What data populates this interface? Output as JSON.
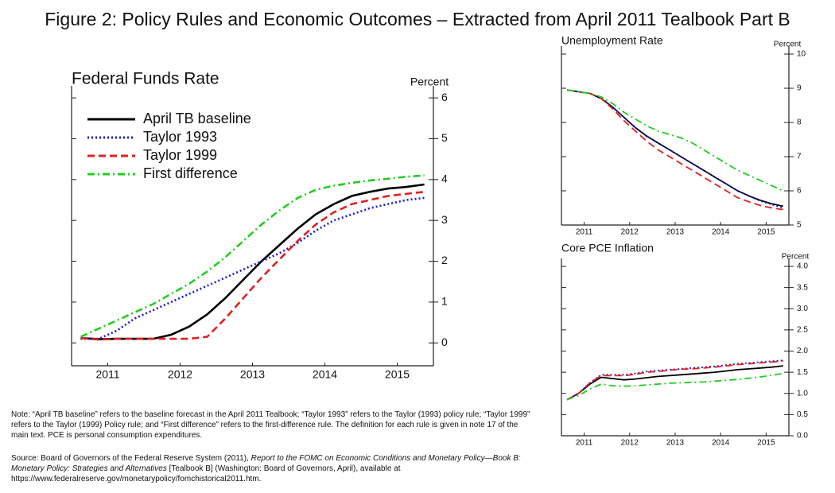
{
  "title": "Figure 2: Policy Rules and Economic Outcomes – Extracted from April 2011 Tealbook Part B",
  "chart_data": [
    {
      "type": "line",
      "title": "Federal Funds Rate",
      "y_label": "Percent",
      "x": [
        2011.125,
        2011.375,
        2011.625,
        2011.875,
        2012.125,
        2012.375,
        2012.625,
        2012.875,
        2013.125,
        2013.375,
        2013.625,
        2013.875,
        2014.125,
        2014.375,
        2014.625,
        2014.875,
        2015.125,
        2015.375,
        2015.625,
        2015.875
      ],
      "xlim": [
        2011,
        2016
      ],
      "xticks": [
        {
          "value": 2011.5,
          "label": "2011"
        },
        {
          "value": 2012.5,
          "label": "2012"
        },
        {
          "value": 2013.5,
          "label": "2013"
        },
        {
          "value": 2014.5,
          "label": "2014"
        },
        {
          "value": 2015.5,
          "label": "2015"
        }
      ],
      "ylim": [
        -0.56,
        6.1
      ],
      "yticks": [
        0,
        1,
        2,
        3,
        4,
        5,
        6
      ],
      "legend": "upper left",
      "series": [
        {
          "name": "April TB baseline",
          "color": "#000000",
          "line_style": "solid",
          "values": [
            0.12,
            0.09,
            0.1,
            0.1,
            0.1,
            0.2,
            0.4,
            0.7,
            1.1,
            1.55,
            2.0,
            2.4,
            2.8,
            3.15,
            3.4,
            3.6,
            3.7,
            3.78,
            3.82,
            3.88
          ]
        },
        {
          "name": "Taylor 1993",
          "color": "#1a1ad8",
          "line_style": "dotted",
          "values": [
            0.1,
            0.1,
            0.3,
            0.6,
            0.8,
            1.0,
            1.2,
            1.4,
            1.6,
            1.8,
            2.0,
            2.2,
            2.45,
            2.75,
            3.0,
            3.15,
            3.3,
            3.4,
            3.5,
            3.55
          ]
        },
        {
          "name": "Taylor 1999",
          "color": "#e02020",
          "line_style": "dashed",
          "values": [
            0.12,
            0.08,
            0.1,
            0.1,
            0.1,
            0.1,
            0.1,
            0.15,
            0.6,
            1.1,
            1.6,
            2.05,
            2.5,
            2.9,
            3.2,
            3.4,
            3.5,
            3.6,
            3.65,
            3.7
          ]
        },
        {
          "name": "First difference",
          "color": "#22cc22",
          "line_style": "dashdot",
          "values": [
            0.15,
            0.35,
            0.55,
            0.75,
            0.95,
            1.2,
            1.45,
            1.75,
            2.1,
            2.5,
            2.9,
            3.25,
            3.55,
            3.75,
            3.85,
            3.92,
            3.98,
            4.02,
            4.07,
            4.1
          ]
        }
      ]
    },
    {
      "type": "line",
      "title": "Unemployment Rate",
      "y_label": "Percent",
      "x": [
        2011.125,
        2011.375,
        2011.625,
        2011.875,
        2012.125,
        2012.375,
        2012.625,
        2012.875,
        2013.125,
        2013.375,
        2013.625,
        2013.875,
        2014.125,
        2014.375,
        2014.625,
        2014.875,
        2015.125,
        2015.375,
        2015.625,
        2015.875
      ],
      "xlim": [
        2011,
        2016
      ],
      "xticks": [
        {
          "value": 2011.5,
          "label": "2011"
        },
        {
          "value": 2012.5,
          "label": "2012"
        },
        {
          "value": 2013.5,
          "label": "2013"
        },
        {
          "value": 2014.5,
          "label": "2014"
        },
        {
          "value": 2015.5,
          "label": "2015"
        }
      ],
      "ylim": [
        5,
        10
      ],
      "yticks": [
        5,
        6,
        7,
        8,
        9,
        10
      ],
      "series": [
        {
          "color": "#000000",
          "line_style": "solid",
          "values": [
            8.95,
            8.9,
            8.85,
            8.7,
            8.45,
            8.15,
            7.85,
            7.6,
            7.4,
            7.2,
            7.0,
            6.8,
            6.6,
            6.4,
            6.2,
            6.0,
            5.85,
            5.72,
            5.62,
            5.55
          ]
        },
        {
          "color": "#1a1ad8",
          "line_style": "dotted",
          "values": [
            8.95,
            8.9,
            8.85,
            8.72,
            8.45,
            8.15,
            7.85,
            7.6,
            7.4,
            7.2,
            7.0,
            6.8,
            6.6,
            6.4,
            6.2,
            6.0,
            5.85,
            5.7,
            5.6,
            5.5
          ]
        },
        {
          "color": "#e02020",
          "line_style": "dashed",
          "values": [
            8.95,
            8.9,
            8.85,
            8.7,
            8.4,
            8.05,
            7.75,
            7.45,
            7.2,
            7.0,
            6.8,
            6.6,
            6.4,
            6.2,
            6.0,
            5.8,
            5.68,
            5.57,
            5.5,
            5.45
          ]
        },
        {
          "color": "#22cc22",
          "line_style": "dashdot",
          "values": [
            8.95,
            8.9,
            8.85,
            8.75,
            8.55,
            8.3,
            8.1,
            7.9,
            7.75,
            7.65,
            7.55,
            7.4,
            7.2,
            7.0,
            6.8,
            6.6,
            6.45,
            6.3,
            6.15,
            6.0
          ]
        }
      ]
    },
    {
      "type": "line",
      "title": "Core PCE Inflation",
      "y_label": "Percent",
      "x": [
        2011.125,
        2011.375,
        2011.625,
        2011.875,
        2012.125,
        2012.375,
        2012.625,
        2012.875,
        2013.125,
        2013.375,
        2013.625,
        2013.875,
        2014.125,
        2014.375,
        2014.625,
        2014.875,
        2015.125,
        2015.375,
        2015.625,
        2015.875
      ],
      "xlim": [
        2011,
        2016
      ],
      "xticks": [
        {
          "value": 2011.5,
          "label": "2011"
        },
        {
          "value": 2012.5,
          "label": "2012"
        },
        {
          "value": 2013.5,
          "label": "2013"
        },
        {
          "value": 2014.5,
          "label": "2014"
        },
        {
          "value": 2015.5,
          "label": "2015"
        }
      ],
      "ylim": [
        0,
        4
      ],
      "yticks": [
        {
          "value": 0,
          "label": "0.0"
        },
        {
          "value": 0.5,
          "label": "0.5"
        },
        {
          "value": 1,
          "label": "1.0"
        },
        {
          "value": 1.5,
          "label": "1.5"
        },
        {
          "value": 2,
          "label": "2.0"
        },
        {
          "value": 2.5,
          "label": "2.5"
        },
        {
          "value": 3,
          "label": "3.0"
        },
        {
          "value": 3.5,
          "label": "3.5"
        },
        {
          "value": 4,
          "label": "4.0"
        }
      ],
      "series": [
        {
          "color": "#000000",
          "line_style": "solid",
          "values": [
            0.85,
            1.0,
            1.22,
            1.38,
            1.35,
            1.32,
            1.34,
            1.37,
            1.4,
            1.42,
            1.44,
            1.46,
            1.48,
            1.5,
            1.53,
            1.56,
            1.58,
            1.6,
            1.62,
            1.65
          ]
        },
        {
          "color": "#1a1ad8",
          "line_style": "dotted",
          "values": [
            0.85,
            1.0,
            1.25,
            1.44,
            1.44,
            1.44,
            1.47,
            1.52,
            1.54,
            1.56,
            1.58,
            1.6,
            1.62,
            1.64,
            1.67,
            1.7,
            1.72,
            1.74,
            1.76,
            1.78
          ]
        },
        {
          "color": "#e02020",
          "line_style": "dashed",
          "values": [
            0.85,
            1.0,
            1.25,
            1.42,
            1.42,
            1.42,
            1.45,
            1.5,
            1.52,
            1.55,
            1.57,
            1.58,
            1.6,
            1.62,
            1.65,
            1.68,
            1.7,
            1.72,
            1.74,
            1.77
          ]
        },
        {
          "color": "#22cc22",
          "line_style": "dashdot",
          "values": [
            0.85,
            0.95,
            1.1,
            1.22,
            1.18,
            1.17,
            1.18,
            1.2,
            1.22,
            1.24,
            1.25,
            1.26,
            1.27,
            1.29,
            1.31,
            1.33,
            1.36,
            1.39,
            1.43,
            1.47
          ]
        }
      ]
    }
  ],
  "note": "Note: “April TB baseline” refers to the baseline forecast in the April 2011 Tealbook; “Taylor 1993” refers to the Taylor (1993) policy rule; “Taylor 1999” refers to the Taylor (1999) Policy rule; and “First difference” refers to the first-difference rule.  The definition for each rule is given in note 17 of the main text.  PCE is personal consumption expenditures.",
  "source": {
    "prefix": "Source: Board of Governors of the Federal Reserve System (2011), ",
    "report": "Report to the FOMC on Economic Conditions and Monetary Policy—Book B: Monetary Policy: Strategies and Alternatives",
    "suffix": " [Tealbook B] (Washington: Board of Governors, April), available at https://www.federalreserve.gov/monetarypolicy/fomchistorical2011.htm."
  }
}
